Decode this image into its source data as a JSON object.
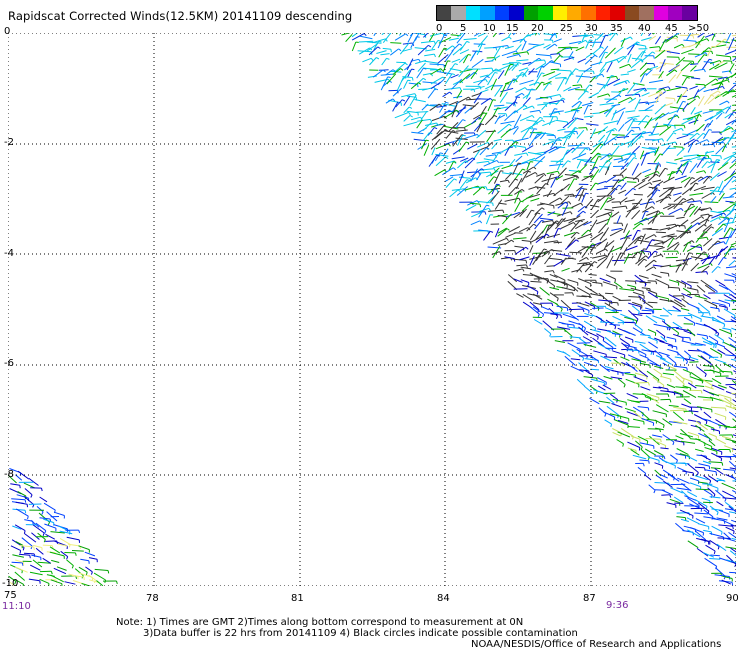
{
  "title": "Rapidscat Corrected Winds(12.5KM) 20141109 descending",
  "legend": {
    "colors": [
      "#444444",
      "#aaaaaa",
      "#00e0ff",
      "#00a0ff",
      "#0040ff",
      "#0000cc",
      "#00a000",
      "#00d000",
      "#ffee00",
      "#ffaa00",
      "#ff7000",
      "#ff2000",
      "#e00000",
      "#8a4a20",
      "#a07060",
      "#e000e0",
      "#a000c0",
      "#6a00a0"
    ],
    "labels": [
      "0",
      "5",
      "10",
      "15",
      "20",
      "25",
      "30",
      "35",
      "40",
      "45",
      ">50 knots"
    ]
  },
  "map": {
    "lon_labels": [
      "75",
      "78",
      "81",
      "84",
      "87",
      "90"
    ],
    "lat_labels": [
      "0",
      "-2",
      "-4",
      "-6",
      "-8",
      "-10"
    ],
    "time_left": "11:10",
    "time_right": "9:36"
  },
  "notes": {
    "line1": "Note: 1) Times are GMT 2)Times along bottom correspond to measurement at 0N",
    "line2": "3)Data buffer is 22 hrs from 20141109 4) Black circles indicate possible contamination",
    "line3": "NOAA/NESDIS/Office of Research and Applications"
  }
}
